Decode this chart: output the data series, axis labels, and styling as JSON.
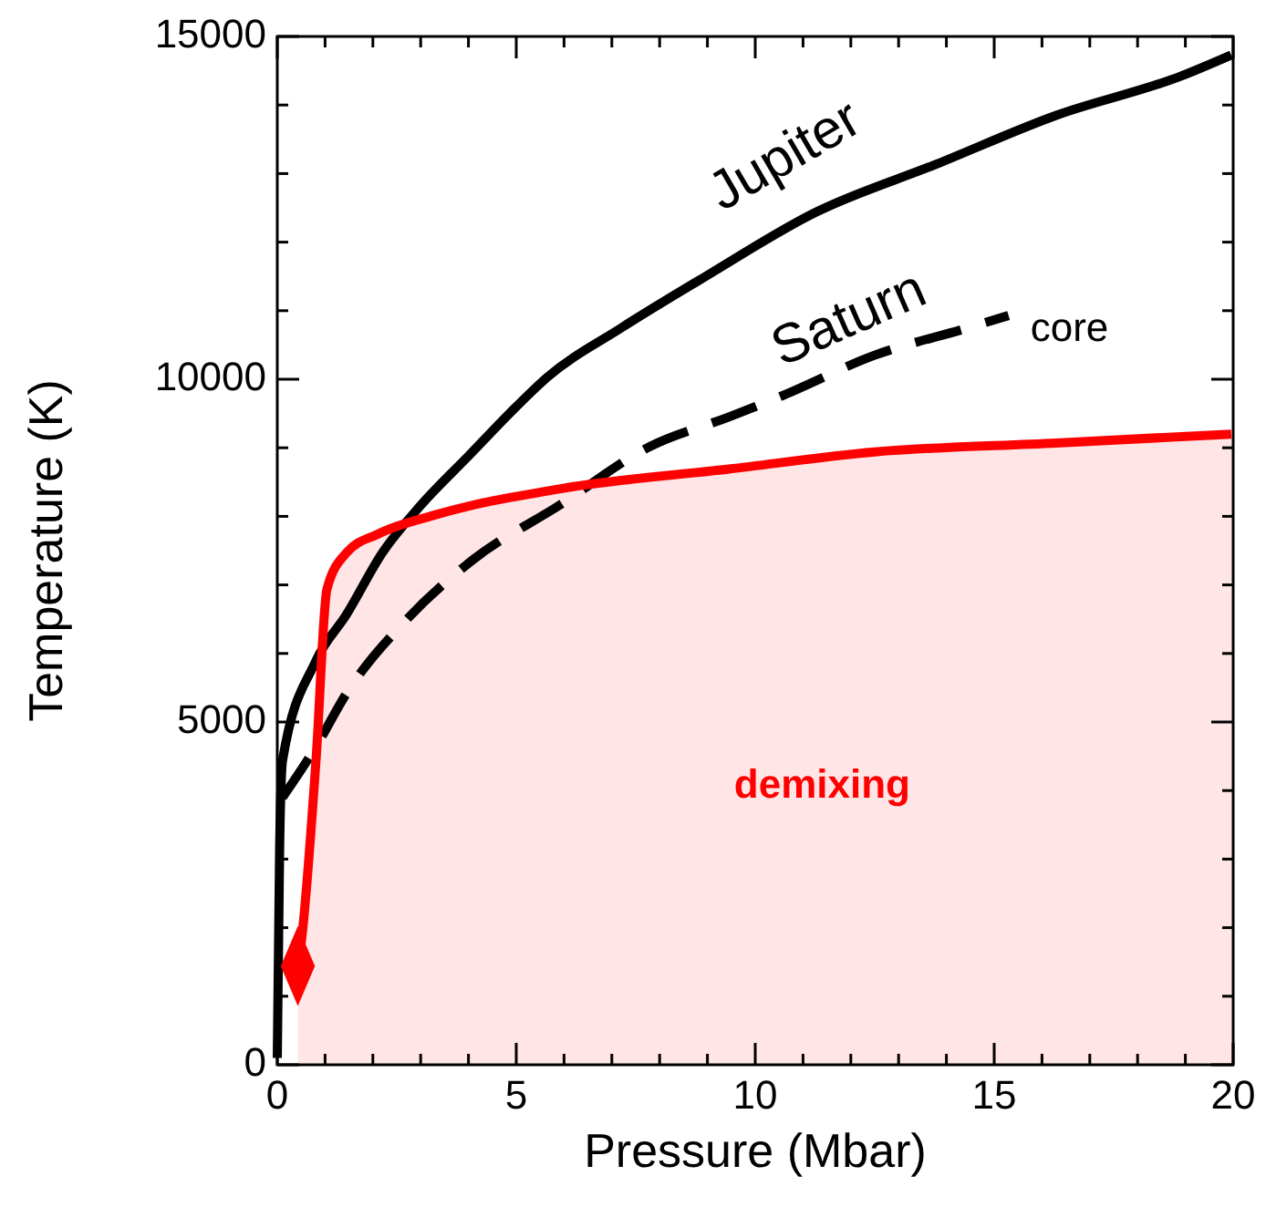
{
  "chart_data": {
    "type": "line",
    "xlabel": "Pressure (Mbar)",
    "ylabel": "Temperature (K)",
    "xlim": [
      0,
      20
    ],
    "ylim": [
      0,
      15000
    ],
    "xticks": [
      0,
      {
        "value": 1,
        "label": null
      },
      {
        "value": 2,
        "label": null
      },
      {
        "value": 3,
        "label": null
      },
      {
        "value": 4,
        "label": null
      },
      5,
      {
        "value": 6,
        "label": null
      },
      {
        "value": 7,
        "label": null
      },
      {
        "value": 8,
        "label": null
      },
      {
        "value": 9,
        "label": null
      },
      10,
      {
        "value": 11,
        "label": null
      },
      {
        "value": 12,
        "label": null
      },
      {
        "value": 13,
        "label": null
      },
      {
        "value": 14,
        "label": null
      },
      15,
      {
        "value": 16,
        "label": null
      },
      {
        "value": 17,
        "label": null
      },
      {
        "value": 18,
        "label": null
      },
      {
        "value": 19,
        "label": null
      },
      20
    ],
    "yticks": [
      0,
      {
        "value": 1000,
        "label": null
      },
      {
        "value": 2000,
        "label": null
      },
      {
        "value": 3000,
        "label": null
      },
      {
        "value": 4000,
        "label": null
      },
      5000,
      {
        "value": 6000,
        "label": null
      },
      {
        "value": 7000,
        "label": null
      },
      {
        "value": 8000,
        "label": null
      },
      {
        "value": 9000,
        "label": null
      },
      10000,
      {
        "value": 11000,
        "label": null
      },
      {
        "value": 12000,
        "label": null
      },
      {
        "value": 13000,
        "label": null
      },
      {
        "value": 14000,
        "label": null
      },
      15000
    ],
    "series": [
      {
        "name": "Jupiter",
        "color": "#000000",
        "line_style": "solid",
        "x": [
          0,
          0.05,
          0.11,
          0.8,
          1.45,
          2.2,
          3.0,
          4.0,
          5.0,
          5.65,
          7.2,
          8.96,
          11.25,
          13.8,
          16.3,
          18.9,
          19.96
        ],
        "values": [
          100,
          3200,
          4440,
          5880,
          6570,
          7470,
          8160,
          8880,
          9600,
          10030,
          10750,
          11500,
          12430,
          13140,
          13850,
          14420,
          14730
        ]
      },
      {
        "name": "Saturn",
        "color": "#000000",
        "line_style": "dashed",
        "x": [
          0.11,
          0.8,
          1.45,
          2.7,
          4.1,
          5.9,
          7.8,
          9.45,
          10.6,
          12.5,
          14.4,
          15.3
        ],
        "values": [
          3900,
          4630,
          5420,
          6490,
          7370,
          8160,
          9020,
          9450,
          9770,
          10350,
          10740,
          10930
        ]
      },
      {
        "name": "demixing",
        "type": "area",
        "color": "#ff0000",
        "line_style": "solid",
        "x": [
          0.43,
          0.5,
          0.81,
          1.04,
          1.45,
          2.1,
          3.35,
          5.9,
          9.45,
          12.5,
          16.3,
          19.96
        ],
        "values": [
          1440,
          1780,
          4440,
          6940,
          7470,
          7740,
          8030,
          8400,
          8690,
          8940,
          9070,
          9200
        ]
      },
      {
        "type": "scatter",
        "marker": "diamond",
        "color": "#ff0000",
        "x": [
          0.43
        ],
        "values": [
          1440
        ]
      }
    ],
    "annotations": [
      "core"
    ]
  }
}
